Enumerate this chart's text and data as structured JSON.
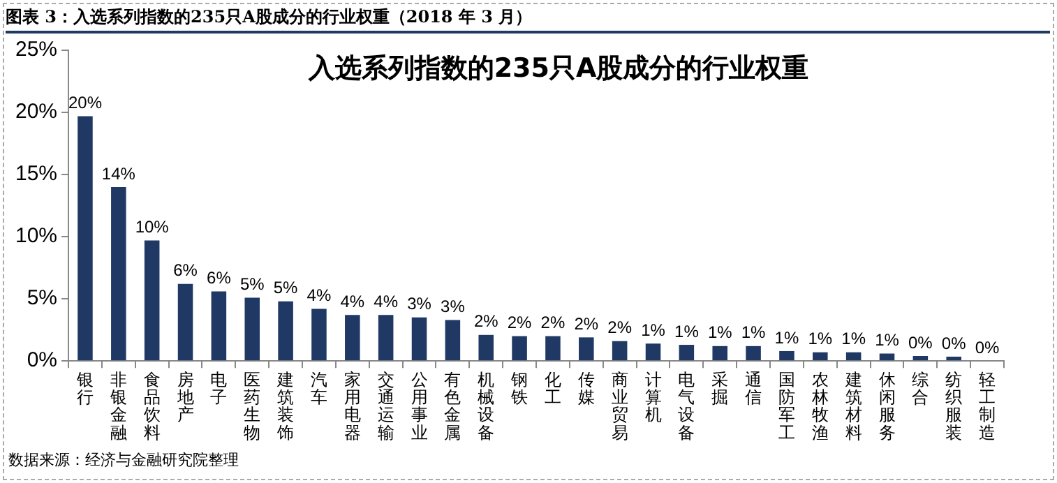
{
  "chart_data": {
    "type": "bar",
    "title": "入选系列指数的235只A股成分的行业权重",
    "subtitle": "图表 3：入选系列指数的235只A股成分的行业权重（2018 年 3 月）",
    "annotations": [
      "数据来源：经济与金融研究院整理"
    ],
    "categories": [
      "银行",
      "非银金融",
      "食品饮料",
      "房地产",
      "电子",
      "医药生物",
      "建筑装饰",
      "汽车",
      "家用电器",
      "交通运输",
      "公用事业",
      "有色金属",
      "机械设备",
      "钢铁",
      "化工",
      "传媒",
      "商业贸易",
      "计算机",
      "电气设备",
      "采掘",
      "通信",
      "国防军工",
      "农林牧渔",
      "建筑材料",
      "休闲服务",
      "综合",
      "纺织服装",
      "轻工制造"
    ],
    "values": [
      19.7,
      14.0,
      9.7,
      6.2,
      5.6,
      5.1,
      4.8,
      4.2,
      3.7,
      3.7,
      3.5,
      3.3,
      2.1,
      2.0,
      2.0,
      1.9,
      1.6,
      1.4,
      1.3,
      1.2,
      1.2,
      0.8,
      0.7,
      0.7,
      0.6,
      0.4,
      0.35,
      0
    ],
    "value_labels": [
      "20%",
      "14%",
      "10%",
      "6%",
      "6%",
      "5%",
      "5%",
      "4%",
      "4%",
      "4%",
      "3%",
      "3%",
      "2%",
      "2%",
      "2%",
      "2%",
      "2%",
      "1%",
      "1%",
      "1%",
      "1%",
      "1%",
      "1%",
      "1%",
      "1%",
      "0%",
      "0%",
      "0%"
    ],
    "color": "#1f3864",
    "ylim": [
      0,
      25
    ],
    "yticks": [
      {
        "value": 0,
        "label": "0%"
      },
      {
        "value": 5,
        "label": "5%"
      },
      {
        "value": 10,
        "label": "10%"
      },
      {
        "value": 15,
        "label": "15%"
      },
      {
        "value": 20,
        "label": "20%"
      },
      {
        "value": 25,
        "label": "25%"
      }
    ],
    "grid": false,
    "legend": false
  }
}
